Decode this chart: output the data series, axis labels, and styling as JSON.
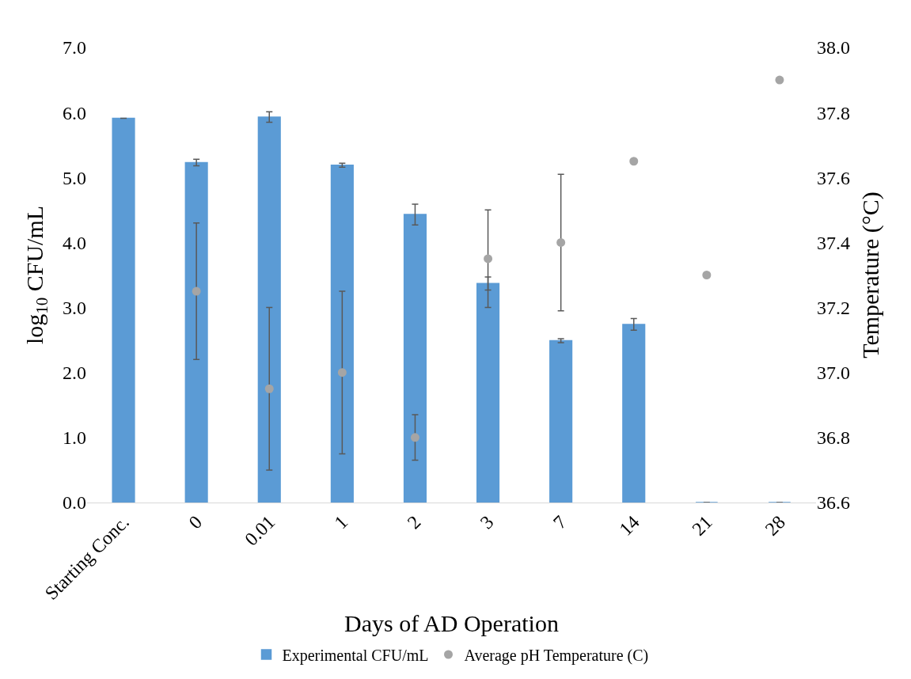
{
  "chart_data": {
    "type": "bar",
    "xlabel": "Days of AD Operation",
    "ylabel": "log$_{10}$ CFU/mL",
    "y2label": "Temperature (°C)",
    "categories": [
      "Starting Conc.",
      "0",
      "0.01",
      "1",
      "2",
      "3",
      "7",
      "14",
      "21",
      "28"
    ],
    "series": [
      {
        "name": "Experimental CFU/mL",
        "color": "#5b9bd5",
        "values": [
          5.91,
          5.23,
          5.93,
          5.19,
          4.43,
          3.37,
          2.49,
          2.74,
          0,
          0
        ],
        "errors": [
          null,
          0.05,
          0.08,
          0.03,
          0.16,
          0.1,
          0.03,
          0.09,
          null,
          null
        ]
      },
      {
        "name": "Average pH Temperature (C)",
        "type": "scatter",
        "axis": "y2",
        "color": "#a5a5a5",
        "marker": "circle",
        "values": [
          null,
          37.25,
          36.95,
          37.0,
          36.8,
          37.35,
          37.4,
          37.65,
          37.3,
          37.9
        ],
        "errors": [
          null,
          0.21,
          0.25,
          0.25,
          0.07,
          0.15,
          0.21,
          null,
          null,
          null
        ]
      }
    ],
    "ylim": [
      0,
      7
    ],
    "yticks": [
      {
        "value": 0,
        "label": "0.0"
      },
      {
        "value": 1,
        "label": "1.0"
      },
      {
        "value": 2,
        "label": "2.0"
      },
      {
        "value": 3,
        "label": "3.0"
      },
      {
        "value": 4,
        "label": "4.0"
      },
      {
        "value": 5,
        "label": "5.0"
      },
      {
        "value": 6,
        "label": "6.0"
      },
      {
        "value": 7,
        "label": "7.0"
      }
    ],
    "y2lim": [
      36.6,
      38.0
    ],
    "y2ticks": [
      {
        "value": 36.6,
        "label": "36.6"
      },
      {
        "value": 36.8,
        "label": "36.8"
      },
      {
        "value": 37.0,
        "label": "37.0"
      },
      {
        "value": 37.2,
        "label": "37.2"
      },
      {
        "value": 37.4,
        "label": "37.4"
      },
      {
        "value": 37.6,
        "label": "37.6"
      },
      {
        "value": 37.8,
        "label": "37.8"
      },
      {
        "value": 38.0,
        "label": "38.0"
      }
    ],
    "legend": "bottom"
  }
}
